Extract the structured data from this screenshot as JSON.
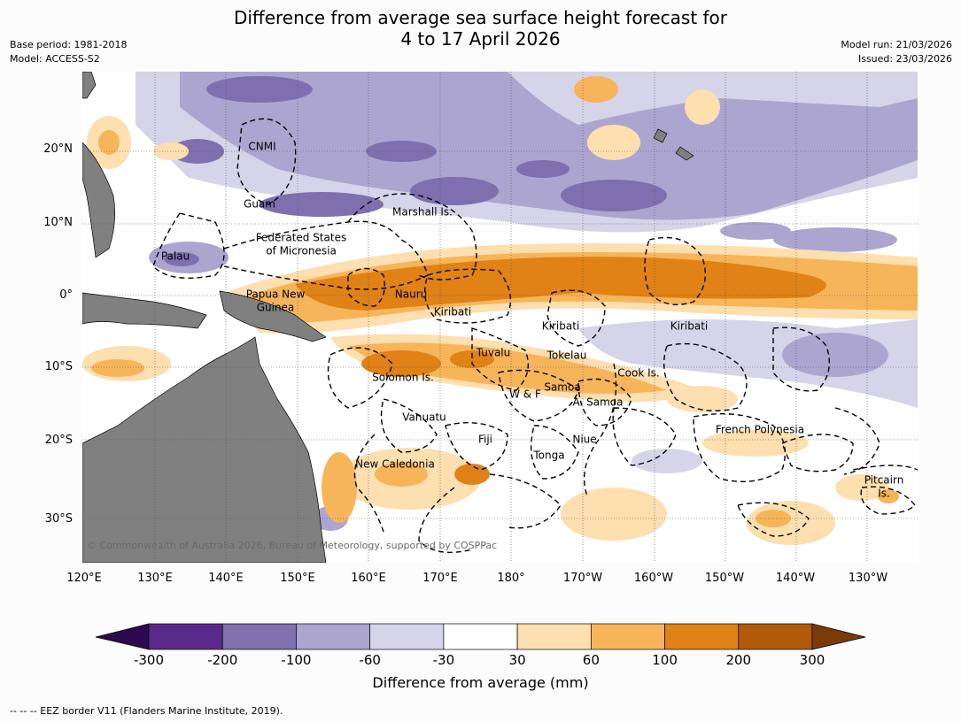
{
  "title_line1": "Difference from average sea surface height forecast for",
  "title_line2": "4 to 17 April 2026",
  "meta_left": {
    "base_period": "Base period: 1981-2018",
    "model": "Model: ACCESS-S2"
  },
  "meta_right": {
    "model_run": "Model run: 21/03/2026",
    "issued": "Issued: 23/03/2026"
  },
  "lat_labels": [
    "20°N",
    "10°N",
    "0°",
    "10°S",
    "20°S",
    "30°S"
  ],
  "lon_labels": [
    "120°E",
    "130°E",
    "140°E",
    "150°E",
    "160°E",
    "170°E",
    "180°",
    "170°W",
    "160°W",
    "150°W",
    "140°W",
    "130°W"
  ],
  "place_labels": {
    "cnmi": "CNMI",
    "guam": "Guam",
    "marshall": "Marshall Is.",
    "fsm1": "Federated States",
    "fsm2": "of Micronesia",
    "palau": "Palau",
    "png1": "Papua New",
    "png2": "Guinea",
    "nauru": "Nauru",
    "kiribati1": "Kiribati",
    "kiribati2": "Kiribati",
    "kiribati3": "Kiribati",
    "tuvalu": "Tuvalu",
    "tokelau": "Tokelau",
    "cook": "Cook Is.",
    "solomon": "Solomon Is.",
    "samoa": "Samoa",
    "wf": "W & F",
    "asamoa": "A. Samoa",
    "vanuatu": "Vanuatu",
    "fiji": "Fiji",
    "niue": "Niue",
    "tonga": "Tonga",
    "frenchpoly": "French Polynesia",
    "newcal": "New Caledonia",
    "pitcairn1": "Pitcairn",
    "pitcairn2": "Is."
  },
  "copyright": "© Commonwealth of Australia 2026, Bureau of Meteorology, supported by COSPPac",
  "colorbar": {
    "labels": [
      "-300",
      "-200",
      "-100",
      "-60",
      "-30",
      "30",
      "60",
      "100",
      "200",
      "300"
    ],
    "colors": [
      "#2d0a4e",
      "#5a2a8a",
      "#7e6fae",
      "#aca5cf",
      "#d6d4e8",
      "#ffffff",
      "#fddfb0",
      "#f7b55a",
      "#e08216",
      "#b05a0c",
      "#7a3a0a"
    ],
    "title": "Difference from average (mm)"
  },
  "footnote": "--  --  -- EEZ border V11 (Flanders Marine Institute, 2019).",
  "palette": {
    "land": "#808080",
    "ocean": "#ffffff"
  }
}
